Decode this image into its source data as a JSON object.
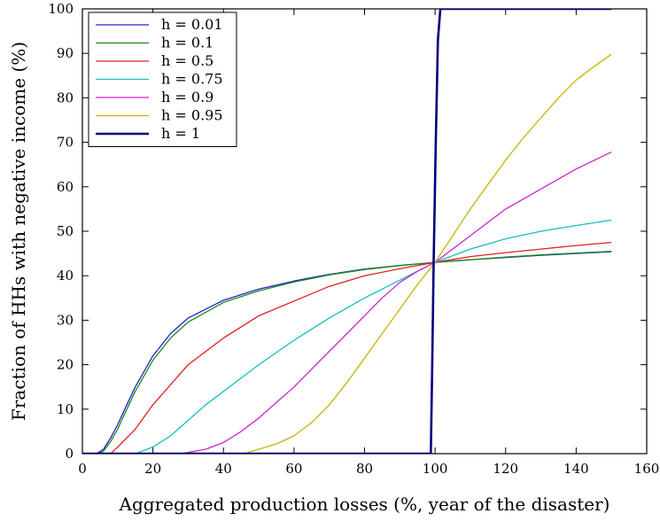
{
  "chart_data": {
    "type": "line",
    "title": "",
    "xlabel": "Aggregated production losses (%, year of the disaster)",
    "ylabel": "Fraction of HHs with negative income (%)",
    "xlim": [
      0,
      160
    ],
    "ylim": [
      0,
      100
    ],
    "xticks": [
      "0",
      "20",
      "40",
      "60",
      "80",
      "100",
      "120",
      "140",
      "160"
    ],
    "yticks": [
      "0",
      "10",
      "20",
      "30",
      "40",
      "50",
      "60",
      "70",
      "80",
      "90",
      "100"
    ],
    "grid": false,
    "legend_position": "top-left",
    "series": [
      {
        "name": "h = 0.01",
        "color": "#2020d0",
        "x": [
          0,
          4,
          6,
          8,
          10,
          12,
          15,
          20,
          25,
          30,
          40,
          50,
          60,
          70,
          80,
          90,
          100,
          110,
          120,
          130,
          140,
          150
        ],
        "y": [
          0,
          0,
          1,
          3.5,
          6.5,
          10,
          15,
          22,
          27,
          30.5,
          34.5,
          37,
          38.8,
          40.3,
          41.5,
          42.3,
          43,
          43.6,
          44.1,
          44.6,
          45,
          45.4
        ]
      },
      {
        "name": "h = 0.1",
        "color": "#1a8a1a",
        "x": [
          0,
          4.5,
          6,
          8,
          10,
          12,
          15,
          20,
          25,
          30,
          40,
          50,
          60,
          70,
          80,
          90,
          100,
          110,
          120,
          130,
          140,
          150
        ],
        "y": [
          0,
          0,
          0.6,
          2.7,
          5.5,
          9,
          14,
          21,
          26,
          29.6,
          34,
          36.6,
          38.6,
          40.2,
          41.4,
          42.3,
          43,
          43.6,
          44.2,
          44.7,
          45.1,
          45.5
        ]
      },
      {
        "name": "h = 0.5",
        "color": "#e02020",
        "x": [
          0,
          8,
          10,
          15,
          20,
          25,
          30,
          40,
          50,
          60,
          70,
          80,
          90,
          100,
          110,
          120,
          130,
          140,
          150
        ],
        "y": [
          0,
          0,
          1.5,
          5.5,
          11,
          15.5,
          20,
          26,
          31,
          34.3,
          37.6,
          40,
          41.6,
          43,
          44.3,
          45.2,
          46,
          46.8,
          47.5
        ]
      },
      {
        "name": "h = 0.75",
        "color": "#10c0c0",
        "x": [
          0,
          15,
          20,
          25,
          30,
          35,
          40,
          50,
          60,
          70,
          80,
          90,
          100,
          110,
          120,
          130,
          140,
          150
        ],
        "y": [
          0,
          0,
          1.5,
          4,
          7.5,
          11,
          14,
          20,
          25.5,
          30.5,
          35,
          39,
          43,
          46,
          48.3,
          50,
          51.3,
          52.5
        ]
      },
      {
        "name": "h = 0.9",
        "color": "#d020d0",
        "x": [
          0,
          28,
          35,
          40,
          45,
          50,
          55,
          60,
          65,
          70,
          75,
          80,
          85,
          90,
          95,
          100,
          110,
          120,
          130,
          140,
          150
        ],
        "y": [
          0,
          0,
          1,
          2.5,
          5,
          8,
          11.5,
          15,
          19,
          23,
          27,
          31,
          35,
          38.5,
          41,
          43,
          49,
          55,
          59.5,
          64,
          67.8
        ]
      },
      {
        "name": "h = 0.95",
        "color": "#c8b400",
        "x": [
          0,
          46,
          50,
          55,
          60,
          65,
          70,
          75,
          80,
          85,
          90,
          95,
          100,
          105,
          110,
          115,
          120,
          125,
          130,
          135,
          140,
          145,
          150
        ],
        "y": [
          0,
          0,
          1,
          2.2,
          4,
          7,
          11,
          16,
          21.5,
          27,
          32.5,
          38,
          43,
          49,
          55,
          60.5,
          66,
          71,
          75.5,
          80,
          84,
          87,
          89.8
        ]
      },
      {
        "name": "h = 1",
        "color": "#00007f",
        "x": [
          0,
          98.8,
          99.2,
          99.6,
          100.2,
          100.8,
          101.5,
          150
        ],
        "y": [
          0,
          0,
          20,
          43,
          70,
          93,
          100,
          100
        ]
      }
    ]
  }
}
